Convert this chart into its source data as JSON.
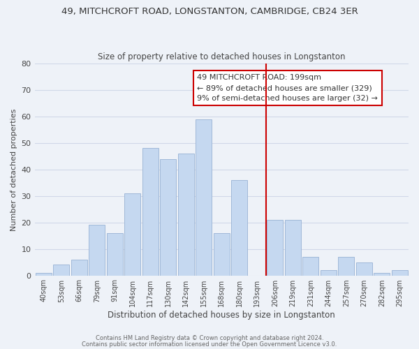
{
  "title1": "49, MITCHCROFT ROAD, LONGSTANTON, CAMBRIDGE, CB24 3ER",
  "title2": "Size of property relative to detached houses in Longstanton",
  "xlabel": "Distribution of detached houses by size in Longstanton",
  "ylabel": "Number of detached properties",
  "bar_labels": [
    "40sqm",
    "53sqm",
    "66sqm",
    "79sqm",
    "91sqm",
    "104sqm",
    "117sqm",
    "130sqm",
    "142sqm",
    "155sqm",
    "168sqm",
    "180sqm",
    "193sqm",
    "206sqm",
    "219sqm",
    "231sqm",
    "244sqm",
    "257sqm",
    "270sqm",
    "282sqm",
    "295sqm"
  ],
  "bar_values": [
    1,
    4,
    6,
    19,
    16,
    31,
    48,
    44,
    46,
    59,
    16,
    36,
    0,
    21,
    21,
    7,
    2,
    7,
    5,
    1,
    2
  ],
  "bar_color": "#c5d8f0",
  "bar_edge_color": "#a0b8d8",
  "vline_color": "#cc0000",
  "vline_x_index": 13.0,
  "annotation_box_text": "49 MITCHCROFT ROAD: 199sqm\n← 89% of detached houses are smaller (329)\n9% of semi-detached houses are larger (32) →",
  "box_edge_color": "#cc0000",
  "ylim": [
    0,
    80
  ],
  "yticks": [
    0,
    10,
    20,
    30,
    40,
    50,
    60,
    70,
    80
  ],
  "grid_color": "#d0d8e8",
  "bg_color": "#eef2f8",
  "footer1": "Contains HM Land Registry data © Crown copyright and database right 2024.",
  "footer2": "Contains public sector information licensed under the Open Government Licence v3.0."
}
